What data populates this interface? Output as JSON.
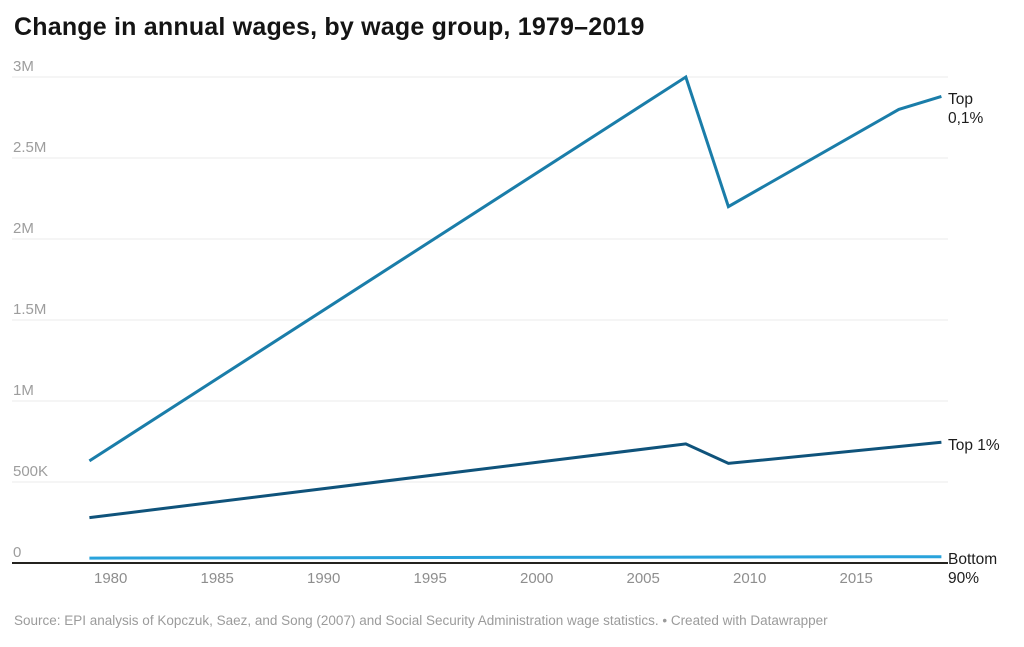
{
  "header": {
    "title": "Change in annual wages, by wage group, 1979–2019"
  },
  "footer": {
    "source": "Source: EPI analysis of Kopczuk, Saez, and Song (2007) and Social Security Administration wage statistics. • Created with Datawrapper"
  },
  "colors": {
    "axis_line": "#24231f",
    "gridline": "#ebebeb",
    "y_tick_text": "#9d9d9d",
    "x_tick_text": "#8e8e8e",
    "label_text": "#1d1d1d"
  },
  "chart_data": {
    "type": "line",
    "title": "Change in annual wages, by wage group, 1979–2019",
    "xlabel": "",
    "ylabel": "",
    "xlim": [
      1979,
      2019
    ],
    "ylim": [
      0,
      3000000
    ],
    "grid": "horizontal",
    "legend_position": "line-end-labels-right",
    "x_ticks": [
      1980,
      1985,
      1990,
      1995,
      2000,
      2005,
      2010,
      2015
    ],
    "y_ticks": [
      {
        "value": 0,
        "label": "0"
      },
      {
        "value": 500000,
        "label": "500K"
      },
      {
        "value": 1000000,
        "label": "1M"
      },
      {
        "value": 1500000,
        "label": "1.5M"
      },
      {
        "value": 2000000,
        "label": "2M"
      },
      {
        "value": 2500000,
        "label": "2.5M"
      },
      {
        "value": 3000000,
        "label": "3M"
      }
    ],
    "series": [
      {
        "name": "Top 0,1%",
        "label_lines": [
          "Top",
          "0,1%"
        ],
        "color": "#1a7da9",
        "points": [
          [
            1979,
            630000
          ],
          [
            2007,
            3000000
          ],
          [
            2009,
            2200000
          ],
          [
            2017,
            2800000
          ],
          [
            2019,
            2880000
          ]
        ]
      },
      {
        "name": "Top 1%",
        "label_lines": [
          "Top 1%"
        ],
        "color": "#0f537b",
        "points": [
          [
            1979,
            280000
          ],
          [
            2007,
            735000
          ],
          [
            2009,
            615000
          ],
          [
            2019,
            745000
          ]
        ]
      },
      {
        "name": "Bottom 90%",
        "label_lines": [
          "Bottom",
          "90%"
        ],
        "color": "#29a3dc",
        "points": [
          [
            1979,
            30000
          ],
          [
            2019,
            38900
          ]
        ]
      }
    ]
  }
}
